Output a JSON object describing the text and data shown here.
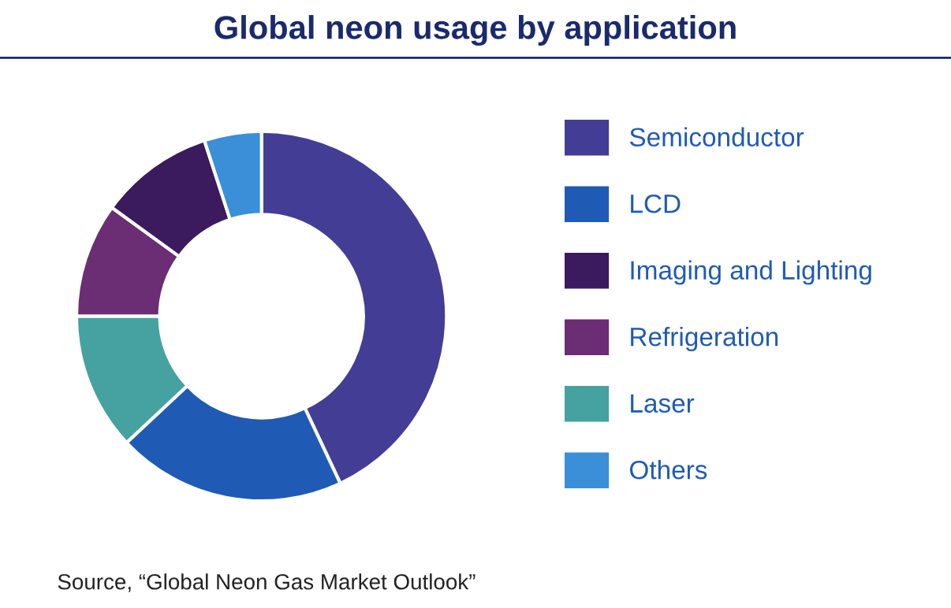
{
  "chart_data": {
    "type": "donut",
    "title": "Global neon usage by application",
    "categories": [
      "Semiconductor",
      "LCD",
      "Imaging and Lighting",
      "Refrigeration",
      "Laser",
      "Others"
    ],
    "values": [
      43,
      20,
      10,
      10,
      12,
      5
    ],
    "colors": [
      "#443d96",
      "#1f5bb5",
      "#3b1a5e",
      "#6b2d74",
      "#45a2a0",
      "#3a8fd8"
    ],
    "legend": "right",
    "annotations": [
      "Source, “Global Neon Gas Market Outlook”"
    ]
  }
}
